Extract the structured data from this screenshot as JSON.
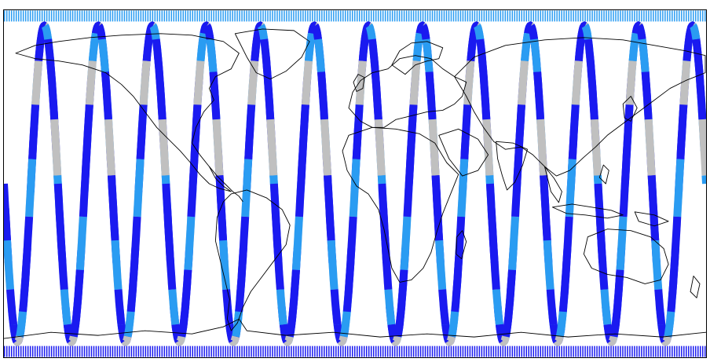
{
  "map": {
    "title": "",
    "projection": "equirectangular",
    "extent": {
      "lon": [
        -180,
        180
      ],
      "lat": [
        -90,
        90
      ]
    },
    "colors": {
      "background": "#ffffff",
      "coastline": "#000000",
      "frame": "#000000",
      "track_primary": "#1a1af0",
      "track_secondary": "#2a9cf2",
      "track_gap": "#c0c0c0"
    },
    "coverage": {
      "inclination_deg": 82,
      "ascending_node_count": 13,
      "segment_pattern": [
        "primary",
        "primary",
        "secondary",
        "primary",
        "gap",
        "primary",
        "primary",
        "secondary",
        "primary",
        "primary",
        "gap",
        "secondary"
      ]
    }
  }
}
